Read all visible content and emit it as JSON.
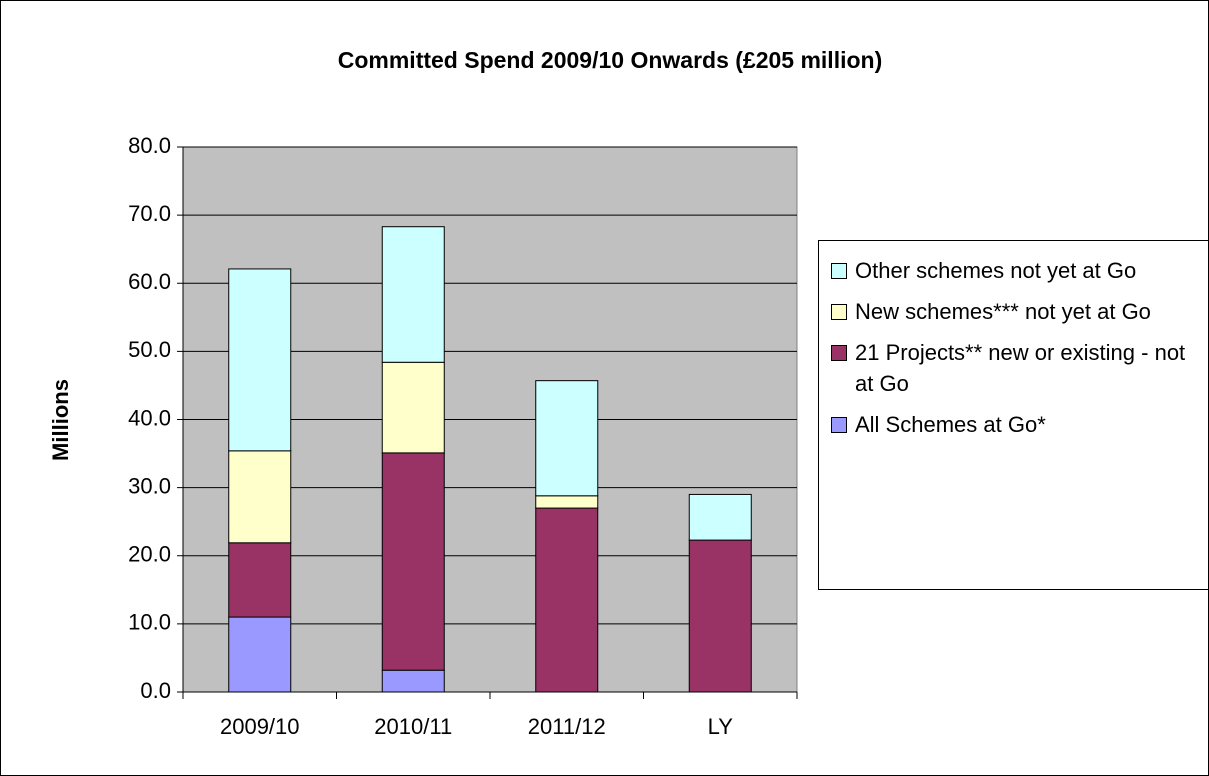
{
  "chart_data": {
    "type": "stacked_bar",
    "title": "Committed Spend 2009/10 Onwards (£205 million)",
    "y_label": "Millions",
    "categories": [
      "2009/10",
      "2010/11",
      "2011/12",
      "LY"
    ],
    "series": [
      {
        "name": "All Schemes at Go*",
        "color": "#9999ff",
        "values": [
          11.0,
          3.2,
          0,
          0
        ]
      },
      {
        "name": "21 Projects** new or existing - not at Go",
        "color": "#993366",
        "values": [
          10.9,
          31.9,
          27.0,
          22.3
        ]
      },
      {
        "name": "New schemes*** not yet at Go",
        "color": "#ffffcc",
        "values": [
          13.5,
          13.3,
          1.8,
          0
        ]
      },
      {
        "name": "Other schemes not yet at Go",
        "color": "#ccffff",
        "values": [
          26.7,
          19.9,
          16.9,
          6.7
        ]
      }
    ],
    "ylim": [
      0,
      80
    ],
    "yticks": [
      {
        "value": 0,
        "label": "0.0"
      },
      {
        "value": 10,
        "label": "10.0"
      },
      {
        "value": 20,
        "label": "20.0"
      },
      {
        "value": 30,
        "label": "30.0"
      },
      {
        "value": 40,
        "label": "40.0"
      },
      {
        "value": 50,
        "label": "50.0"
      },
      {
        "value": 60,
        "label": "60.0"
      },
      {
        "value": 70,
        "label": "70.0"
      },
      {
        "value": 80,
        "label": "80.0"
      }
    ],
    "grid": true,
    "legend": "right"
  }
}
